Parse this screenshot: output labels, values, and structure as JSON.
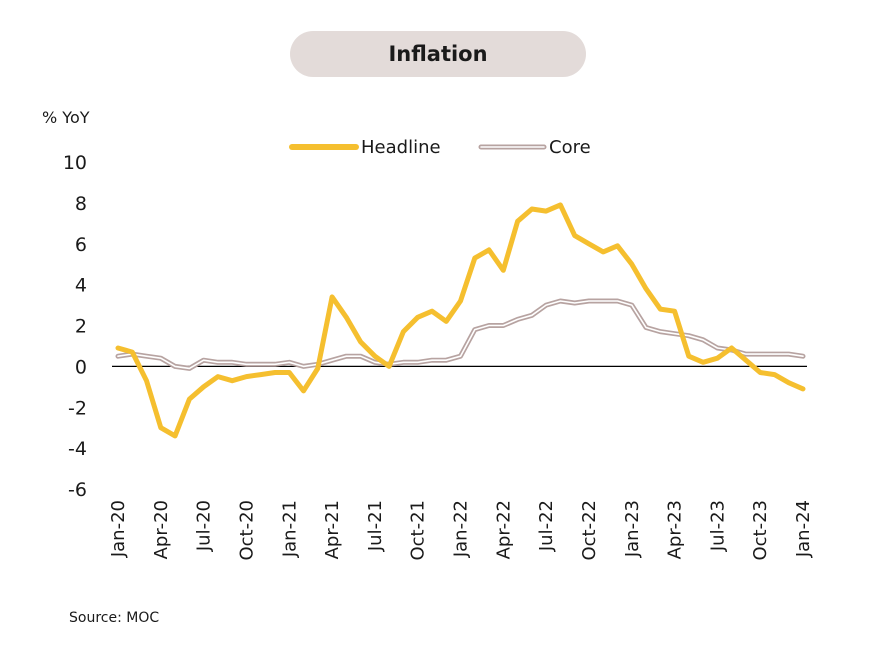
{
  "title": "Inflation",
  "source": "Source: MOC",
  "colors": {
    "headline": "#f5bf2f",
    "core": "#b7a3a1",
    "title_bg": "#e3dbd9",
    "zero_line": "#000000",
    "text": "#1a1a1a"
  },
  "chart_data": {
    "type": "line",
    "ylabel": "% YoY",
    "ylim": [
      -6,
      10
    ],
    "yticks": [
      -6,
      -4,
      -2,
      0,
      2,
      4,
      6,
      8,
      10
    ],
    "grid": false,
    "legend_position": "top-center",
    "x": [
      "Jan-20",
      "Feb-20",
      "Mar-20",
      "Apr-20",
      "May-20",
      "Jun-20",
      "Jul-20",
      "Aug-20",
      "Sep-20",
      "Oct-20",
      "Nov-20",
      "Dec-20",
      "Jan-21",
      "Feb-21",
      "Mar-21",
      "Apr-21",
      "May-21",
      "Jun-21",
      "Jul-21",
      "Aug-21",
      "Sep-21",
      "Oct-21",
      "Nov-21",
      "Dec-21",
      "Jan-22",
      "Feb-22",
      "Mar-22",
      "Apr-22",
      "May-22",
      "Jun-22",
      "Jul-22",
      "Aug-22",
      "Sep-22",
      "Oct-22",
      "Nov-22",
      "Dec-22",
      "Jan-23",
      "Feb-23",
      "Mar-23",
      "Apr-23",
      "May-23",
      "Jun-23",
      "Jul-23",
      "Aug-23",
      "Sep-23",
      "Oct-23",
      "Nov-23",
      "Dec-23",
      "Jan-24"
    ],
    "xtick_labels": [
      "Jan-20",
      "Apr-20",
      "Jul-20",
      "Oct-20",
      "Jan-21",
      "Apr-21",
      "Jul-21",
      "Oct-21",
      "Jan-22",
      "Apr-22",
      "Jul-22",
      "Oct-22",
      "Jan-23",
      "Apr-23",
      "Jul-23",
      "Oct-23",
      "Jan-24"
    ],
    "series": [
      {
        "name": "Headline",
        "values": [
          0.9,
          0.7,
          -0.7,
          -3.0,
          -3.4,
          -1.6,
          -1.0,
          -0.5,
          -0.7,
          -0.5,
          -0.4,
          -0.3,
          -0.3,
          -1.2,
          -0.1,
          3.4,
          2.4,
          1.2,
          0.5,
          0.0,
          1.7,
          2.4,
          2.7,
          2.2,
          3.2,
          5.3,
          5.7,
          4.7,
          7.1,
          7.7,
          7.6,
          7.9,
          6.4,
          6.0,
          5.6,
          5.9,
          5.0,
          3.8,
          2.8,
          2.7,
          0.5,
          0.2,
          0.4,
          0.9,
          0.3,
          -0.3,
          -0.4,
          -0.8,
          -1.1
        ]
      },
      {
        "name": "Core",
        "values": [
          0.5,
          0.6,
          0.5,
          0.4,
          0.0,
          -0.1,
          0.3,
          0.2,
          0.2,
          0.1,
          0.1,
          0.1,
          0.2,
          0.0,
          0.1,
          0.3,
          0.5,
          0.5,
          0.2,
          0.1,
          0.2,
          0.2,
          0.3,
          0.3,
          0.5,
          1.8,
          2.0,
          2.0,
          2.3,
          2.5,
          3.0,
          3.2,
          3.1,
          3.2,
          3.2,
          3.2,
          3.0,
          1.9,
          1.7,
          1.6,
          1.5,
          1.3,
          0.9,
          0.8,
          0.6,
          0.6,
          0.6,
          0.6,
          0.5
        ]
      }
    ]
  }
}
